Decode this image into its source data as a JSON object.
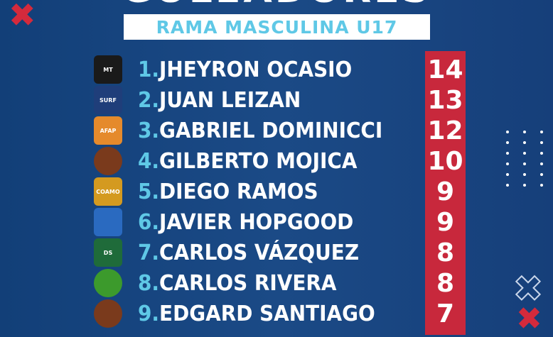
{
  "title": "GOLEADORES",
  "subtitle": "RAMA MASCULINA U17",
  "colors": {
    "background": "#1b4a86",
    "accent_red": "#c8283c",
    "accent_cyan": "#5fc8e6"
  },
  "players": [
    {
      "rank": "1.",
      "name": "JHEYRON OCASIO",
      "goals": "14",
      "logo": "MT",
      "logo_color": "#1a1a1a"
    },
    {
      "rank": "2.",
      "name": "JUAN LEIZAN",
      "goals": "13",
      "logo": "SURF",
      "logo_color": "#1f3e7a"
    },
    {
      "rank": "3.",
      "name": "GABRIEL DOMINICCI",
      "goals": "12",
      "logo": "AFAP",
      "logo_color": "#e58a2c"
    },
    {
      "rank": "4.",
      "name": "GILBERTO MOJICA",
      "goals": "10",
      "logo": "",
      "logo_color": "#7a3a1c"
    },
    {
      "rank": "5.",
      "name": "DIEGO RAMOS",
      "goals": "9",
      "logo": "COAMO",
      "logo_color": "#d49a20"
    },
    {
      "rank": "6.",
      "name": "JAVIER HOPGOOD",
      "goals": "9",
      "logo": "",
      "logo_color": "#2a6ac0"
    },
    {
      "rank": "7.",
      "name": "CARLOS VÁZQUEZ",
      "goals": "8",
      "logo": "DS",
      "logo_color": "#1f6b3a"
    },
    {
      "rank": "8.",
      "name": "CARLOS RIVERA",
      "goals": "8",
      "logo": "",
      "logo_color": "#3c9a2c"
    },
    {
      "rank": "9.",
      "name": "EDGARD SANTIAGO",
      "goals": "7",
      "logo": "",
      "logo_color": "#7a3a1c"
    }
  ]
}
